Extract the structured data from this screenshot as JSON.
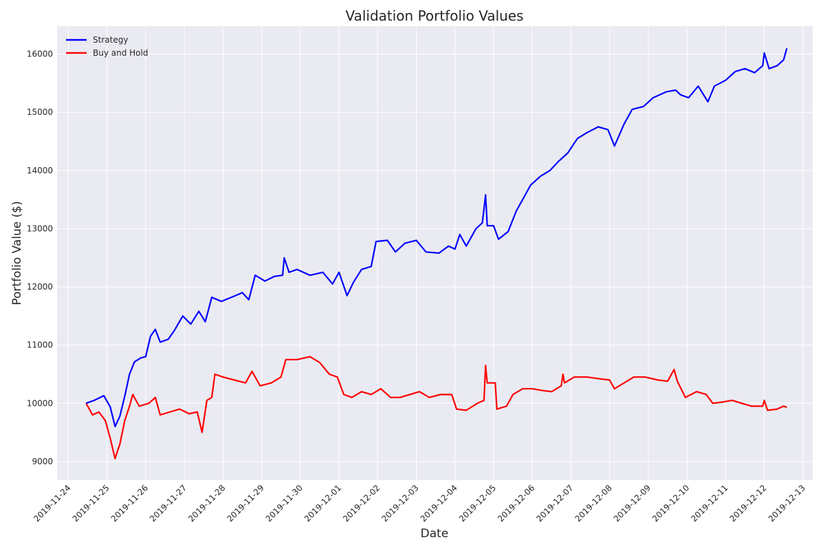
{
  "chart_data": {
    "type": "line",
    "title": "Validation Portfolio Values",
    "xlabel": "Date",
    "ylabel": "Portfolio Value ($)",
    "grid": true,
    "legend_position": "top-left",
    "xlim": [
      "2019-11-23T17:00",
      "2019-12-13T06:00"
    ],
    "ylim": [
      8680,
      16480
    ],
    "x_ticks": [
      "2019-11-24",
      "2019-11-25",
      "2019-11-26",
      "2019-11-27",
      "2019-11-28",
      "2019-11-29",
      "2019-11-30",
      "2019-12-01",
      "2019-12-02",
      "2019-12-03",
      "2019-12-04",
      "2019-12-05",
      "2019-12-06",
      "2019-12-07",
      "2019-12-08",
      "2019-12-09",
      "2019-12-10",
      "2019-12-11",
      "2019-12-12",
      "2019-12-13"
    ],
    "y_ticks": [
      "9000",
      "10000",
      "11000",
      "12000",
      "13000",
      "14000",
      "15000",
      "16000"
    ],
    "series": [
      {
        "name": "Strategy",
        "color": "#0000ff",
        "points": [
          [
            "2019-11-24T11:00",
            10000
          ],
          [
            "2019-11-24T16:00",
            10050
          ],
          [
            "2019-11-24T22:00",
            10130
          ],
          [
            "2019-11-25T02:00",
            9940
          ],
          [
            "2019-11-25T05:00",
            9600
          ],
          [
            "2019-11-25T08:00",
            9780
          ],
          [
            "2019-11-25T11:00",
            10120
          ],
          [
            "2019-11-25T14:00",
            10500
          ],
          [
            "2019-11-25T17:00",
            10710
          ],
          [
            "2019-11-25T21:00",
            10780
          ],
          [
            "2019-11-26T00:00",
            10800
          ],
          [
            "2019-11-26T03:00",
            11150
          ],
          [
            "2019-11-26T06:00",
            11270
          ],
          [
            "2019-11-26T09:00",
            11050
          ],
          [
            "2019-11-26T14:00",
            11100
          ],
          [
            "2019-11-26T18:00",
            11260
          ],
          [
            "2019-11-26T23:00",
            11500
          ],
          [
            "2019-11-27T04:00",
            11360
          ],
          [
            "2019-11-27T09:00",
            11580
          ],
          [
            "2019-11-27T13:00",
            11400
          ],
          [
            "2019-11-27T17:00",
            11820
          ],
          [
            "2019-11-27T23:00",
            11750
          ],
          [
            "2019-11-28T06:00",
            11830
          ],
          [
            "2019-11-28T12:00",
            11900
          ],
          [
            "2019-11-28T16:00",
            11780
          ],
          [
            "2019-11-28T20:00",
            12200
          ],
          [
            "2019-11-29T02:00",
            12100
          ],
          [
            "2019-11-29T08:00",
            12180
          ],
          [
            "2019-11-29T13:00",
            12200
          ],
          [
            "2019-11-29T14:00",
            12500
          ],
          [
            "2019-11-29T17:00",
            12250
          ],
          [
            "2019-11-29T22:00",
            12300
          ],
          [
            "2019-11-30T06:00",
            12200
          ],
          [
            "2019-11-30T14:00",
            12250
          ],
          [
            "2019-11-30T20:00",
            12050
          ],
          [
            "2019-12-01T00:00",
            12250
          ],
          [
            "2019-12-01T05:00",
            11850
          ],
          [
            "2019-12-01T09:00",
            12080
          ],
          [
            "2019-12-01T14:00",
            12300
          ],
          [
            "2019-12-01T20:00",
            12350
          ],
          [
            "2019-12-01T23:00",
            12780
          ],
          [
            "2019-12-02T06:00",
            12800
          ],
          [
            "2019-12-02T11:00",
            12600
          ],
          [
            "2019-12-02T17:00",
            12750
          ],
          [
            "2019-12-03T00:00",
            12800
          ],
          [
            "2019-12-03T06:00",
            12600
          ],
          [
            "2019-12-03T14:00",
            12580
          ],
          [
            "2019-12-03T20:00",
            12700
          ],
          [
            "2019-12-04T00:00",
            12650
          ],
          [
            "2019-12-04T03:00",
            12900
          ],
          [
            "2019-12-04T07:00",
            12700
          ],
          [
            "2019-12-04T13:00",
            13000
          ],
          [
            "2019-12-04T17:00",
            13100
          ],
          [
            "2019-12-04T19:00",
            13580
          ],
          [
            "2019-12-04T20:00",
            13050
          ],
          [
            "2019-12-05T00:00",
            13050
          ],
          [
            "2019-12-05T03:00",
            12820
          ],
          [
            "2019-12-05T09:00",
            12950
          ],
          [
            "2019-12-05T14:00",
            13300
          ],
          [
            "2019-12-05T18:00",
            13500
          ],
          [
            "2019-12-05T23:00",
            13750
          ],
          [
            "2019-12-06T05:00",
            13900
          ],
          [
            "2019-12-06T11:00",
            14000
          ],
          [
            "2019-12-06T16:00",
            14150
          ],
          [
            "2019-12-06T22:00",
            14300
          ],
          [
            "2019-12-07T04:00",
            14550
          ],
          [
            "2019-12-07T10:00",
            14650
          ],
          [
            "2019-12-07T17:00",
            14750
          ],
          [
            "2019-12-07T23:00",
            14700
          ],
          [
            "2019-12-08T03:00",
            14420
          ],
          [
            "2019-12-08T09:00",
            14800
          ],
          [
            "2019-12-08T14:00",
            15050
          ],
          [
            "2019-12-08T21:00",
            15100
          ],
          [
            "2019-12-09T03:00",
            15250
          ],
          [
            "2019-12-09T11:00",
            15350
          ],
          [
            "2019-12-09T17:00",
            15380
          ],
          [
            "2019-12-09T20:00",
            15300
          ],
          [
            "2019-12-10T01:00",
            15250
          ],
          [
            "2019-12-10T07:00",
            15450
          ],
          [
            "2019-12-10T13:00",
            15180
          ],
          [
            "2019-12-10T17:00",
            15450
          ],
          [
            "2019-12-11T00:00",
            15550
          ],
          [
            "2019-12-11T06:00",
            15700
          ],
          [
            "2019-12-11T12:00",
            15750
          ],
          [
            "2019-12-11T18:00",
            15680
          ],
          [
            "2019-12-11T23:00",
            15800
          ],
          [
            "2019-12-12T00:00",
            16020
          ],
          [
            "2019-12-12T03:00",
            15750
          ],
          [
            "2019-12-12T08:00",
            15800
          ],
          [
            "2019-12-12T12:00",
            15900
          ],
          [
            "2019-12-12T14:00",
            16100
          ]
        ]
      },
      {
        "name": "Buy and Hold",
        "color": "#ff0000",
        "points": [
          [
            "2019-11-24T11:00",
            10000
          ],
          [
            "2019-11-24T15:00",
            9800
          ],
          [
            "2019-11-24T19:00",
            9850
          ],
          [
            "2019-11-24T23:00",
            9700
          ],
          [
            "2019-11-25T02:00",
            9400
          ],
          [
            "2019-11-25T05:00",
            9050
          ],
          [
            "2019-11-25T08:00",
            9300
          ],
          [
            "2019-11-25T11:00",
            9700
          ],
          [
            "2019-11-25T14:00",
            9950
          ],
          [
            "2019-11-25T16:00",
            10150
          ],
          [
            "2019-11-25T20:00",
            9950
          ],
          [
            "2019-11-26T02:00",
            10000
          ],
          [
            "2019-11-26T06:00",
            10100
          ],
          [
            "2019-11-26T09:00",
            9800
          ],
          [
            "2019-11-26T15:00",
            9850
          ],
          [
            "2019-11-26T21:00",
            9900
          ],
          [
            "2019-11-27T03:00",
            9820
          ],
          [
            "2019-11-27T08:00",
            9850
          ],
          [
            "2019-11-27T11:00",
            9500
          ],
          [
            "2019-11-27T14:00",
            10050
          ],
          [
            "2019-11-27T17:00",
            10100
          ],
          [
            "2019-11-27T19:00",
            10500
          ],
          [
            "2019-11-28T00:00",
            10450
          ],
          [
            "2019-11-28T07:00",
            10400
          ],
          [
            "2019-11-28T14:00",
            10350
          ],
          [
            "2019-11-28T18:00",
            10550
          ],
          [
            "2019-11-28T23:00",
            10300
          ],
          [
            "2019-11-29T06:00",
            10350
          ],
          [
            "2019-11-29T12:00",
            10450
          ],
          [
            "2019-11-29T15:00",
            10750
          ],
          [
            "2019-11-29T22:00",
            10750
          ],
          [
            "2019-11-30T06:00",
            10800
          ],
          [
            "2019-11-30T12:00",
            10700
          ],
          [
            "2019-11-30T18:00",
            10500
          ],
          [
            "2019-11-30T23:00",
            10450
          ],
          [
            "2019-12-01T03:00",
            10150
          ],
          [
            "2019-12-01T08:00",
            10100
          ],
          [
            "2019-12-01T14:00",
            10200
          ],
          [
            "2019-12-01T20:00",
            10150
          ],
          [
            "2019-12-02T02:00",
            10250
          ],
          [
            "2019-12-02T08:00",
            10100
          ],
          [
            "2019-12-02T14:00",
            10100
          ],
          [
            "2019-12-02T20:00",
            10150
          ],
          [
            "2019-12-03T02:00",
            10200
          ],
          [
            "2019-12-03T08:00",
            10100
          ],
          [
            "2019-12-03T15:00",
            10150
          ],
          [
            "2019-12-03T22:00",
            10150
          ],
          [
            "2019-12-04T01:00",
            9900
          ],
          [
            "2019-12-04T07:00",
            9880
          ],
          [
            "2019-12-04T14:00",
            10000
          ],
          [
            "2019-12-04T18:00",
            10050
          ],
          [
            "2019-12-04T19:00",
            10650
          ],
          [
            "2019-12-04T20:00",
            10350
          ],
          [
            "2019-12-05T01:00",
            10350
          ],
          [
            "2019-12-05T02:00",
            9900
          ],
          [
            "2019-12-05T08:00",
            9950
          ],
          [
            "2019-12-05T12:00",
            10150
          ],
          [
            "2019-12-05T18:00",
            10250
          ],
          [
            "2019-12-06T00:00",
            10250
          ],
          [
            "2019-12-06T06:00",
            10220
          ],
          [
            "2019-12-06T12:00",
            10200
          ],
          [
            "2019-12-06T18:00",
            10300
          ],
          [
            "2019-12-06T19:00",
            10500
          ],
          [
            "2019-12-06T20:00",
            10350
          ],
          [
            "2019-12-07T02:00",
            10450
          ],
          [
            "2019-12-07T10:00",
            10450
          ],
          [
            "2019-12-07T18:00",
            10420
          ],
          [
            "2019-12-08T00:00",
            10400
          ],
          [
            "2019-12-08T03:00",
            10250
          ],
          [
            "2019-12-08T09:00",
            10350
          ],
          [
            "2019-12-08T15:00",
            10450
          ],
          [
            "2019-12-08T22:00",
            10450
          ],
          [
            "2019-12-09T06:00",
            10400
          ],
          [
            "2019-12-09T12:00",
            10380
          ],
          [
            "2019-12-09T16:00",
            10580
          ],
          [
            "2019-12-09T18:00",
            10380
          ],
          [
            "2019-12-09T23:00",
            10100
          ],
          [
            "2019-12-10T06:00",
            10200
          ],
          [
            "2019-12-10T12:00",
            10150
          ],
          [
            "2019-12-10T16:00",
            10000
          ],
          [
            "2019-12-10T22:00",
            10020
          ],
          [
            "2019-12-11T04:00",
            10050
          ],
          [
            "2019-12-11T10:00",
            10000
          ],
          [
            "2019-12-11T16:00",
            9950
          ],
          [
            "2019-12-11T23:00",
            9950
          ],
          [
            "2019-12-12T00:00",
            10050
          ],
          [
            "2019-12-12T02:00",
            9880
          ],
          [
            "2019-12-12T08:00",
            9900
          ],
          [
            "2019-12-12T12:00",
            9950
          ],
          [
            "2019-12-12T14:00",
            9930
          ]
        ]
      }
    ]
  }
}
